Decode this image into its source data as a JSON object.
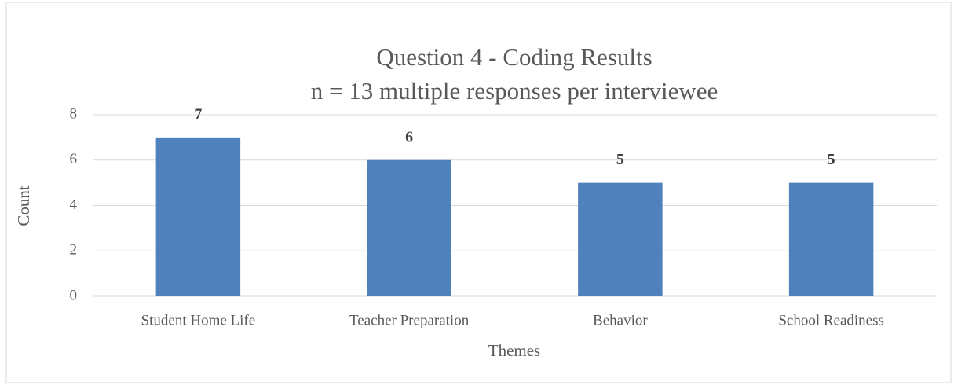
{
  "chart_data": {
    "type": "bar",
    "title": "Question 4 - Coding Results",
    "subtitle": "n = 13 multiple responses per interviewee",
    "x_label": "Themes",
    "y_label": "Count",
    "categories": [
      "Student Home Life",
      "Teacher Preparation",
      "Behavior",
      "School Readiness"
    ],
    "values": [
      7,
      6,
      5,
      5
    ],
    "color": "#4f81bd",
    "ylim": [
      0,
      8
    ],
    "yticks": [
      0,
      2,
      4,
      6,
      8
    ],
    "grid": true
  }
}
